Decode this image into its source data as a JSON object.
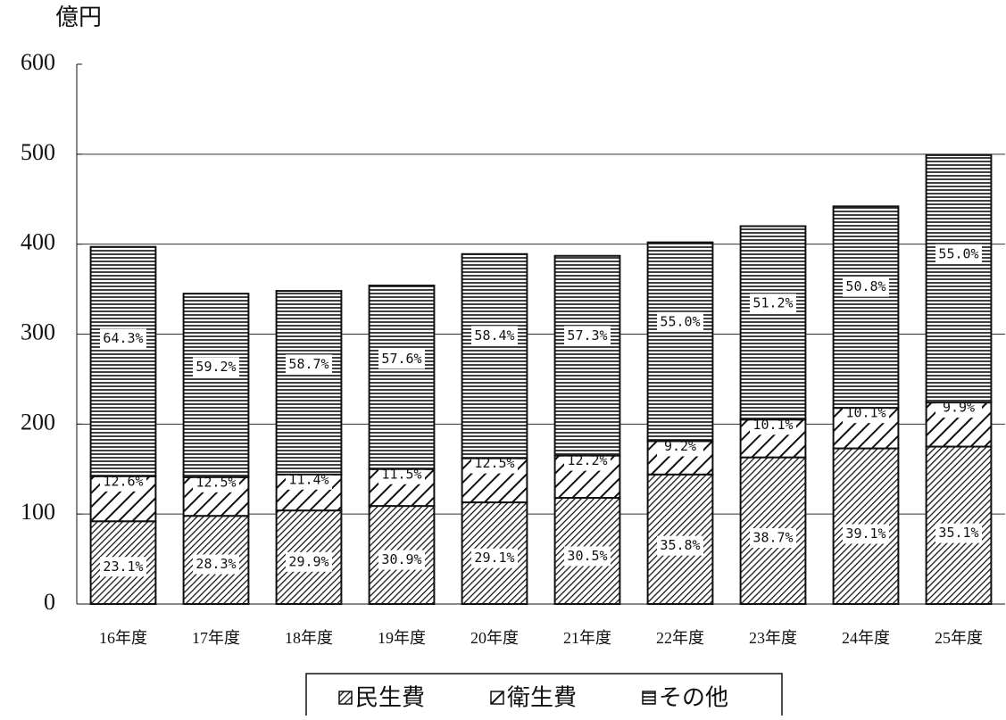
{
  "chart_data": {
    "type": "stacked_bar",
    "ylabel": "億円",
    "categories": [
      "16年度",
      "17年度",
      "18年度",
      "19年度",
      "20年度",
      "21年度",
      "22年度",
      "23年度",
      "24年度",
      "25年度"
    ],
    "series": [
      {
        "name": "民生費",
        "color": "#111111",
        "pattern": "diag-dense",
        "values": [
          92,
          98,
          104,
          109,
          113,
          118,
          144,
          163,
          173,
          175
        ],
        "share_labels": [
          "23.1%",
          "28.3%",
          "29.9%",
          "30.9%",
          "29.1%",
          "30.5%",
          "35.8%",
          "38.7%",
          "39.1%",
          "35.1%"
        ]
      },
      {
        "name": "衛生費",
        "color": "#111111",
        "pattern": "diag-wide",
        "values": [
          50,
          43,
          40,
          41,
          49,
          47,
          37,
          42,
          45,
          49
        ],
        "share_labels": [
          "12.6%",
          "12.5%",
          "11.4%",
          "11.5%",
          "12.5%",
          "12.2%",
          "9.2%",
          "10.1%",
          "10.1%",
          "9.9%"
        ]
      },
      {
        "name": "その他",
        "color": "#111111",
        "pattern": "horizontal",
        "values": [
          255,
          204,
          204,
          204,
          227,
          222,
          221,
          215,
          224,
          275
        ],
        "share_labels": [
          "64.3%",
          "59.2%",
          "58.7%",
          "57.6%",
          "58.4%",
          "57.3%",
          "55.0%",
          "51.2%",
          "50.8%",
          "55.0%"
        ]
      }
    ],
    "ylim": [
      0,
      600
    ],
    "yticks": [
      0,
      100,
      200,
      300,
      400,
      500,
      600
    ],
    "grid": true,
    "legend": "bottom"
  }
}
